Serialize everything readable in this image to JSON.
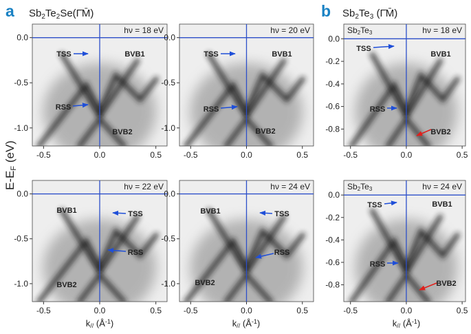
{
  "figure": {
    "panel_labels": [
      "a",
      "b"
    ],
    "headings": [
      [
        "Sb",
        "2",
        "Te",
        "2",
        "Se(Γ̄M̄)"
      ],
      [
        "Sb",
        "2",
        "Te",
        "3",
        " (Γ̄M̄)"
      ]
    ],
    "y_label": [
      "E-E",
      "F",
      " (eV)"
    ],
    "x_label": [
      "k",
      "//",
      " (Å",
      "-1",
      ")"
    ],
    "panels": [
      {
        "photon": "hν = 18 eV",
        "xlim": [
          -0.6,
          0.6
        ],
        "ylim": [
          -1.2,
          0.15
        ],
        "xticks": [
          -0.5,
          {
            "value": 0,
            "label": "0.0"
          },
          0.5
        ],
        "yticks": [
          {
            "value": 0,
            "label": "0.0"
          },
          -0.5,
          {
            "value": -1,
            "label": "-1.0"
          }
        ],
        "annotations": [
          {
            "text": "TSS",
            "color": "#1f4fd8"
          },
          {
            "text": "BVB1",
            "color": "#e0201c"
          },
          {
            "text": "RSS",
            "color": "#1f4fd8"
          },
          {
            "text": "BVB2",
            "color": "#e0201c"
          }
        ]
      },
      {
        "photon": "hν = 20 eV",
        "xlim": [
          -0.6,
          0.6
        ],
        "ylim": [
          -1.2,
          0.15
        ],
        "xticks": [
          -0.5,
          {
            "value": 0,
            "label": "0.0"
          },
          0.5
        ],
        "yticks": [
          {
            "value": 0,
            "label": "0.0"
          },
          -0.5,
          {
            "value": -1,
            "label": "-1.0"
          }
        ],
        "annotations": [
          {
            "text": "TSS",
            "color": "#1f4fd8"
          },
          {
            "text": "BVB1",
            "color": "#e0201c"
          },
          {
            "text": "RSS",
            "color": "#1f4fd8"
          },
          {
            "text": "BVB2",
            "color": "#e0201c"
          }
        ]
      },
      {
        "photon": "hν = 22 eV",
        "xlim": [
          -0.6,
          0.6
        ],
        "ylim": [
          -1.2,
          0.15
        ],
        "xticks": [
          -0.5,
          {
            "value": 0,
            "label": "0.0"
          },
          0.5
        ],
        "yticks": [
          {
            "value": 0,
            "label": "0.0"
          },
          -0.5,
          {
            "value": -1,
            "label": "-1.0"
          }
        ],
        "annotations": [
          {
            "text": "BVB1",
            "color": "#e0201c"
          },
          {
            "text": "TSS",
            "color": "#1f4fd8"
          },
          {
            "text": "RSS",
            "color": "#1f4fd8"
          },
          {
            "text": "BVB2",
            "color": "#e0201c"
          }
        ]
      },
      {
        "photon": "hν = 24 eV",
        "xlim": [
          -0.6,
          0.6
        ],
        "ylim": [
          -1.2,
          0.15
        ],
        "xticks": [
          -0.5,
          {
            "value": 0,
            "label": "0.0"
          },
          0.5
        ],
        "yticks": [
          {
            "value": 0,
            "label": "0.0"
          },
          -0.5,
          {
            "value": -1,
            "label": "-1.0"
          }
        ],
        "annotations": [
          {
            "text": "BVB1",
            "color": "#e0201c"
          },
          {
            "text": "TSS",
            "color": "#1f4fd8"
          },
          {
            "text": "RSS",
            "color": "#1f4fd8"
          },
          {
            "text": "BVB2",
            "color": "#e0201c"
          }
        ]
      },
      {
        "photon": "hν = 18 eV",
        "inset": [
          "Sb",
          "2",
          "Te",
          "3"
        ],
        "xlim": [
          -0.56,
          0.53
        ],
        "ylim": [
          -0.95,
          0.13
        ],
        "xticks": [
          -0.5,
          {
            "value": 0,
            "label": "0.0"
          },
          0.5
        ],
        "yticks": [
          {
            "value": 0,
            "label": "0.0"
          },
          -0.2,
          -0.4,
          -0.6,
          -0.8
        ],
        "annotations": [
          {
            "text": "TSS",
            "color": "#1f4fd8"
          },
          {
            "text": "BVB1",
            "color": "#e0201c"
          },
          {
            "text": "RSS",
            "color": "#1f4fd8"
          },
          {
            "text": "BVB2",
            "color": "#e0201c"
          }
        ]
      },
      {
        "photon": "hν = 24 eV",
        "inset": [
          "Sb",
          "2",
          "Te",
          "3"
        ],
        "xlim": [
          -0.56,
          0.53
        ],
        "ylim": [
          -0.95,
          0.13
        ],
        "xticks": [
          -0.5,
          {
            "value": 0,
            "label": "0.0"
          },
          0.5
        ],
        "yticks": [
          {
            "value": 0,
            "label": "0.0"
          },
          -0.2,
          -0.4,
          -0.6,
          -0.8
        ],
        "annotations": [
          {
            "text": "TSS",
            "color": "#1f4fd8"
          },
          {
            "text": "BVB1",
            "color": "#e0201c"
          },
          {
            "text": "RSS",
            "color": "#1f4fd8"
          },
          {
            "text": "BVB2",
            "color": "#e0201c"
          }
        ]
      }
    ]
  }
}
